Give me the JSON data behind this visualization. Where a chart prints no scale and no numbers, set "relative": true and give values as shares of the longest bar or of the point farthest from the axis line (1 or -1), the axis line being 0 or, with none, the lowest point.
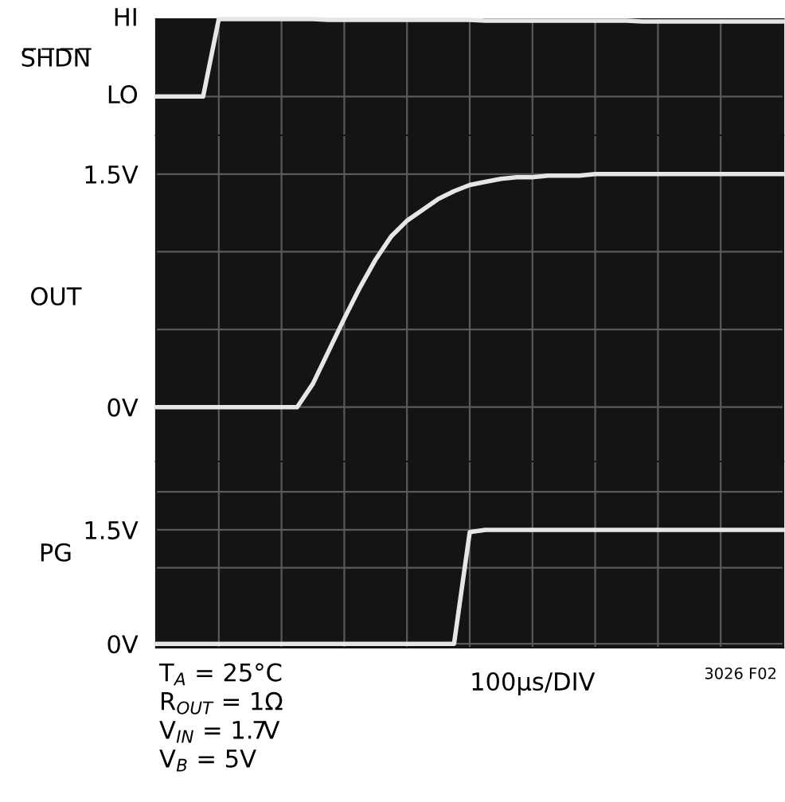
{
  "chart_data": [
    {
      "type": "line",
      "ylabel": "S̅H̅D̅N̅",
      "categories": [
        null,
        null,
        null,
        null,
        null,
        null,
        null,
        null,
        null,
        null,
        null,
        null,
        null,
        null,
        null,
        null,
        null,
        null,
        null,
        null,
        null,
        null,
        null,
        null,
        null,
        null,
        null,
        null,
        null,
        null,
        null,
        null,
        null,
        null,
        null,
        null,
        null,
        null,
        null,
        null,
        null
      ],
      "relative": true,
      "grid": true,
      "annotations": [
        "LO",
        "HI"
      ],
      "series": [
        {
          "color": "#e6e6e6",
          "values": [
            0,
            0,
            0,
            0,
            1,
            1,
            1,
            1,
            1,
            1,
            1,
            0.99,
            0.99,
            0.99,
            0.99,
            0.99,
            0.99,
            0.99,
            0.99,
            0.99,
            0.99,
            0.98,
            0.98,
            0.98,
            0.98,
            0.98,
            0.98,
            0.98,
            0.98,
            0.98,
            0.98,
            0.97,
            0.97,
            0.97,
            0.97,
            0.97,
            0.97,
            0.97,
            0.97,
            0.97,
            0.97
          ]
        }
      ]
    },
    {
      "type": "line",
      "ylabel": "OUT",
      "categories": [
        null,
        null,
        null,
        null,
        null,
        null,
        null,
        null,
        null,
        null,
        null,
        null,
        null,
        null,
        null,
        null,
        null,
        null,
        null,
        null,
        null,
        null,
        null,
        null,
        null,
        null,
        null,
        null,
        null,
        null,
        null,
        null,
        null,
        null,
        null,
        null,
        null,
        null,
        null,
        null,
        null
      ],
      "ylim": [
        -0.35,
        1.75
      ],
      "yticks": [
        {
          "value": 0,
          "label": "0V"
        },
        {
          "value": 0.5,
          "label": null
        },
        {
          "value": 1.0,
          "label": null
        },
        {
          "value": 1.5,
          "label": "1.5V"
        }
      ],
      "grid": true,
      "series": [
        {
          "color": "#e6e6e6",
          "values": [
            0,
            0,
            0,
            0,
            0,
            0,
            0,
            0,
            0,
            0,
            0.15,
            0.36,
            0.57,
            0.77,
            0.95,
            1.1,
            1.2,
            1.27,
            1.34,
            1.39,
            1.43,
            1.45,
            1.47,
            1.48,
            1.48,
            1.49,
            1.49,
            1.49,
            1.5,
            1.5,
            1.5,
            1.5,
            1.5,
            1.5,
            1.5,
            1.5,
            1.5,
            1.5,
            1.5,
            1.5,
            1.5
          ]
        }
      ]
    },
    {
      "type": "line",
      "ylabel": "PG",
      "xlabel": "100µs/DIV",
      "categories": [
        null,
        null,
        null,
        null,
        null,
        null,
        null,
        null,
        null,
        null,
        null,
        null,
        null,
        null,
        null,
        null,
        null,
        null,
        null,
        null,
        null,
        null,
        null,
        null,
        null,
        null,
        null,
        null,
        null,
        null,
        null,
        null,
        null,
        null,
        null,
        null,
        null,
        null,
        null,
        null,
        null
      ],
      "ylim": [
        -0.05,
        2.4
      ],
      "yticks": [
        {
          "value": 0,
          "label": "0V"
        },
        {
          "value": 1.0,
          "label": null
        },
        {
          "value": 1.5,
          "label": "1.5V"
        },
        {
          "value": 2.0,
          "label": null
        }
      ],
      "grid": true,
      "series": [
        {
          "color": "#e6e6e6",
          "values": [
            0,
            0,
            0,
            0,
            0,
            0,
            0,
            0,
            0,
            0,
            0,
            0,
            0,
            0,
            0,
            0,
            0,
            0,
            0,
            0,
            1.47,
            1.5,
            1.5,
            1.5,
            1.5,
            1.5,
            1.5,
            1.5,
            1.5,
            1.5,
            1.5,
            1.5,
            1.5,
            1.5,
            1.5,
            1.5,
            1.5,
            1.5,
            1.5,
            1.5,
            1.5
          ]
        }
      ],
      "annotations": [
        "T$_{A}$ = 25°C",
        "R$_{OUT}$ = 1Ω",
        "V$_{IN}$ = 1.7V",
        "V$_{B}$ = 5V",
        "3026 F02"
      ]
    }
  ]
}
